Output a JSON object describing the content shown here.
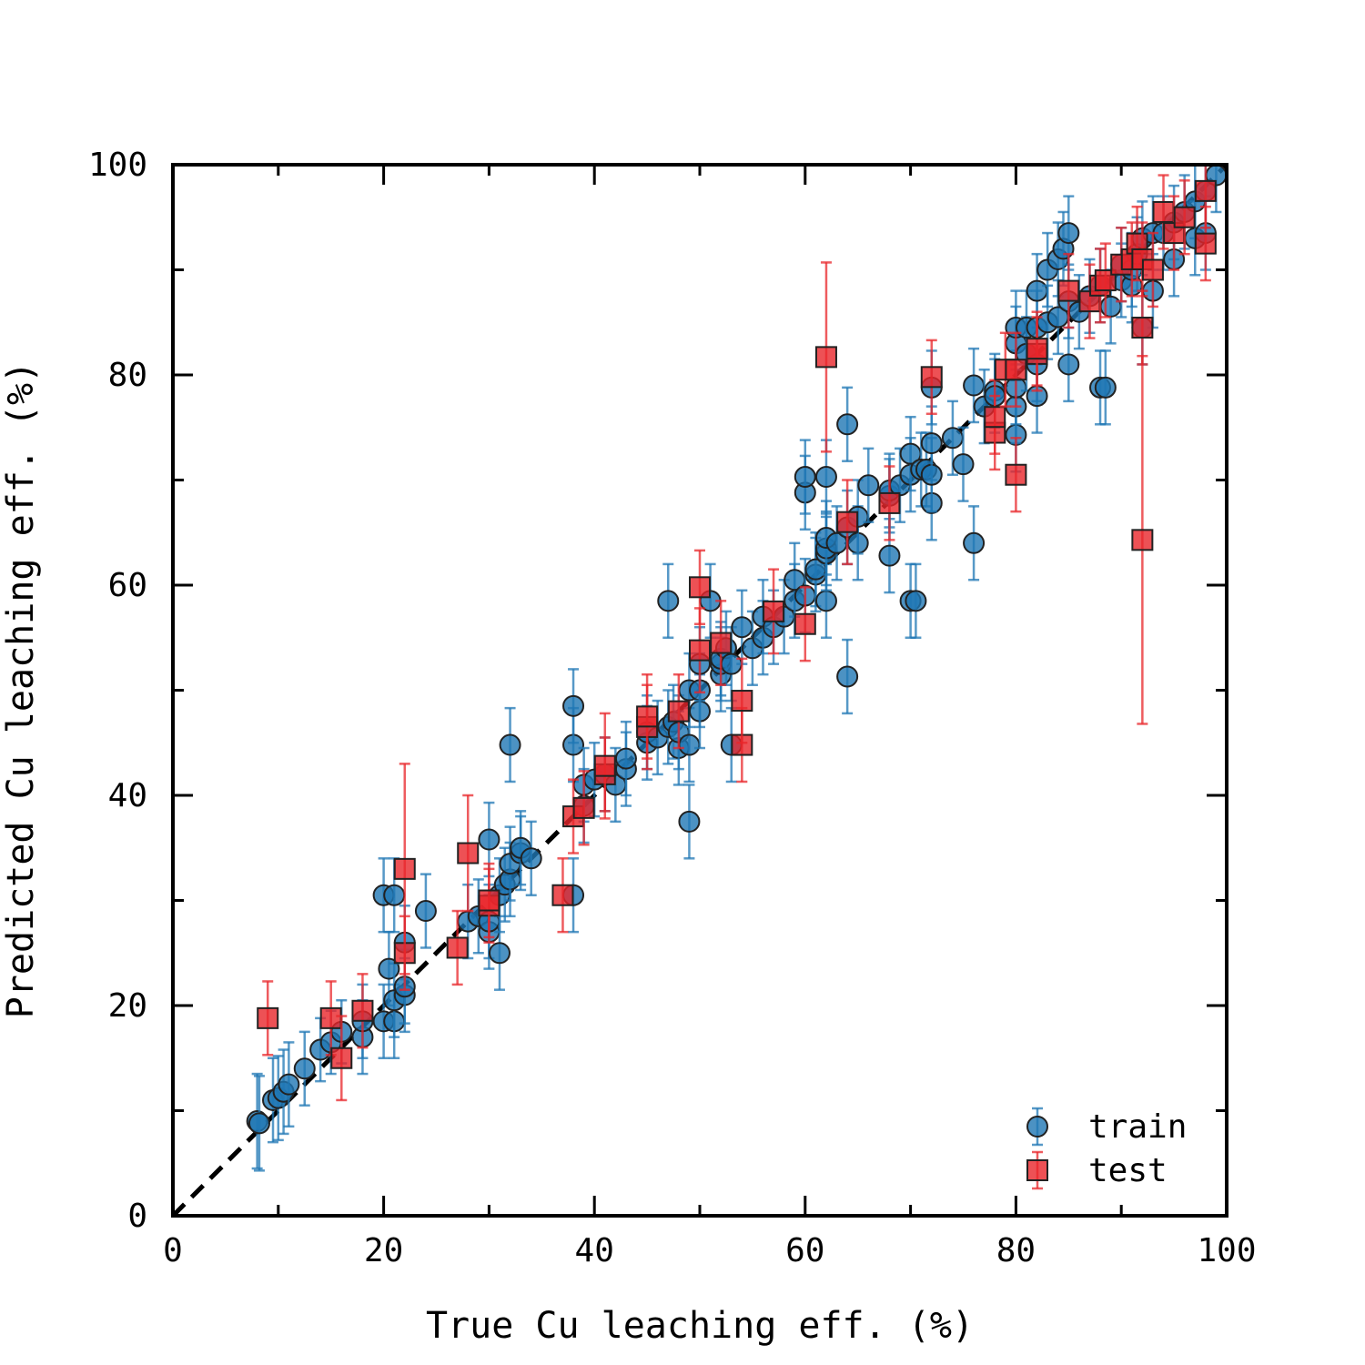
{
  "chart_data": {
    "type": "scatter",
    "xlabel": "True Cu leaching eff. (%)",
    "ylabel": "Predicted Cu leaching eff. (%)",
    "xlim": [
      0,
      100
    ],
    "ylim": [
      0,
      100
    ],
    "xticks": [
      "0",
      "20",
      "40",
      "60",
      "80",
      "100"
    ],
    "yticks": [
      "0",
      "20",
      "40",
      "60",
      "80",
      "100"
    ],
    "grid": false,
    "legend_position": "bottom-right",
    "reference_line": {
      "style": "dashed",
      "color": "#000000",
      "from": [
        0,
        0
      ],
      "to": [
        100,
        100
      ]
    },
    "series": [
      {
        "name": "train",
        "marker": "circle",
        "color": "#1f77b4",
        "points": [
          [
            8,
            9,
            4.5
          ],
          [
            8.2,
            8.8,
            4.5
          ],
          [
            9.5,
            11,
            4
          ],
          [
            10,
            11.2,
            4
          ],
          [
            10.5,
            11.8,
            4
          ],
          [
            11,
            12.5,
            4
          ],
          [
            12.5,
            14,
            3.5
          ],
          [
            14,
            15.8,
            3
          ],
          [
            15,
            16.5,
            3
          ],
          [
            16,
            17.5,
            3
          ],
          [
            18,
            17,
            3.5
          ],
          [
            18,
            18.5,
            3.5
          ],
          [
            20,
            18.5,
            3.5
          ],
          [
            20,
            30.5,
            3.5
          ],
          [
            20.5,
            23.5,
            3.5
          ],
          [
            21,
            18.5,
            3.5
          ],
          [
            21,
            20.5,
            3.5
          ],
          [
            21,
            30.5,
            3.5
          ],
          [
            22,
            21,
            3.5
          ],
          [
            22,
            21.8,
            3.5
          ],
          [
            22,
            26,
            3.5
          ],
          [
            24,
            29,
            3.5
          ],
          [
            28,
            28,
            3.5
          ],
          [
            29,
            28.5,
            3.5
          ],
          [
            30,
            27,
            3.5
          ],
          [
            30,
            28,
            3.5
          ],
          [
            30,
            35.8,
            3.5
          ],
          [
            31,
            25,
            3.5
          ],
          [
            31,
            30.5,
            3.5
          ],
          [
            31.5,
            31.5,
            3.5
          ],
          [
            32,
            32,
            3.5
          ],
          [
            32,
            33.5,
            3.5
          ],
          [
            32,
            44.8,
            3.5
          ],
          [
            33,
            34.5,
            3.5
          ],
          [
            33,
            35,
            3.5
          ],
          [
            34,
            34,
            3.5
          ],
          [
            38,
            30.5,
            3.5
          ],
          [
            38,
            44.8,
            3.5
          ],
          [
            38,
            48.5,
            3.5
          ],
          [
            39,
            39,
            3.5
          ],
          [
            39,
            41,
            3.5
          ],
          [
            40,
            41.5,
            3.5
          ],
          [
            41,
            42,
            3.5
          ],
          [
            42,
            41,
            3.5
          ],
          [
            43,
            42.5,
            3.5
          ],
          [
            43,
            43.5,
            3.5
          ],
          [
            45,
            45,
            3.5
          ],
          [
            45,
            46,
            3.5
          ],
          [
            46,
            45.5,
            3.5
          ],
          [
            47,
            46.5,
            3.5
          ],
          [
            47,
            58.5,
            3.5
          ],
          [
            47.5,
            47,
            3.5
          ],
          [
            48,
            44.5,
            3.5
          ],
          [
            48,
            46,
            3.5
          ],
          [
            49,
            37.5,
            3.5
          ],
          [
            49,
            44.8,
            3.5
          ],
          [
            49,
            50,
            3.5
          ],
          [
            50,
            48,
            3.5
          ],
          [
            50,
            50,
            3.5
          ],
          [
            50,
            52.5,
            3.5
          ],
          [
            51,
            58.5,
            3.5
          ],
          [
            52,
            51.5,
            3.5
          ],
          [
            52,
            52.5,
            3.5
          ],
          [
            52,
            53,
            3.5
          ],
          [
            52.5,
            54,
            3.5
          ],
          [
            53,
            44.8,
            3.5
          ],
          [
            53,
            52.5,
            3.5
          ],
          [
            54,
            56,
            3.5
          ],
          [
            55,
            54,
            3.5
          ],
          [
            56,
            55,
            3.5
          ],
          [
            56,
            57,
            3.5
          ],
          [
            57,
            56,
            3.5
          ],
          [
            58,
            57,
            3.5
          ],
          [
            59,
            58.5,
            3.5
          ],
          [
            59,
            60.5,
            3.5
          ],
          [
            60,
            59,
            3.5
          ],
          [
            60,
            68.8,
            3.5
          ],
          [
            60,
            70.3,
            3.5
          ],
          [
            61,
            61,
            3.5
          ],
          [
            61,
            61.5,
            3.5
          ],
          [
            62,
            58.5,
            3.5
          ],
          [
            62,
            63,
            3.5
          ],
          [
            62,
            63.5,
            3.5
          ],
          [
            62,
            64.5,
            3.5
          ],
          [
            62,
            70.3,
            3.5
          ],
          [
            63,
            64,
            3.5
          ],
          [
            64,
            51.3,
            3.5
          ],
          [
            64,
            65.5,
            3.5
          ],
          [
            64,
            75.3,
            3.5
          ],
          [
            65,
            64,
            3.5
          ],
          [
            65,
            66.5,
            3.5
          ],
          [
            66,
            69.5,
            3.5
          ],
          [
            68,
            62.8,
            3.5
          ],
          [
            68,
            68.5,
            3.5
          ],
          [
            68,
            69,
            3.5
          ],
          [
            69,
            69.5,
            3.5
          ],
          [
            70,
            58.5,
            3.5
          ],
          [
            70,
            70.5,
            3.5
          ],
          [
            70,
            72.5,
            3.5
          ],
          [
            70.5,
            58.5,
            3.5
          ],
          [
            71,
            71,
            3.5
          ],
          [
            71.5,
            71,
            3.5
          ],
          [
            72,
            67.8,
            3.5
          ],
          [
            72,
            70.5,
            3.5
          ],
          [
            72,
            73.5,
            3.5
          ],
          [
            72,
            78.8,
            3.5
          ],
          [
            74,
            74,
            3.5
          ],
          [
            75,
            71.5,
            3.5
          ],
          [
            76,
            64,
            3.5
          ],
          [
            76,
            79,
            3.5
          ],
          [
            77,
            77,
            3.5
          ],
          [
            78,
            78.5,
            3.5
          ],
          [
            78,
            78,
            3.5
          ],
          [
            80,
            74.3,
            3.5
          ],
          [
            80,
            77,
            3.5
          ],
          [
            80,
            78.8,
            3.5
          ],
          [
            80,
            83,
            3.5
          ],
          [
            80,
            84.5,
            3.5
          ],
          [
            81,
            82,
            3.5
          ],
          [
            81,
            84.5,
            3.5
          ],
          [
            82,
            78,
            3.5
          ],
          [
            82,
            81,
            3.5
          ],
          [
            82,
            84.5,
            3.5
          ],
          [
            82,
            88,
            3.5
          ],
          [
            83,
            85,
            3.5
          ],
          [
            83,
            90,
            3.5
          ],
          [
            84,
            85.5,
            3.5
          ],
          [
            84,
            91,
            3.5
          ],
          [
            84.5,
            92,
            3.5
          ],
          [
            85,
            81,
            3.5
          ],
          [
            85,
            87,
            3.5
          ],
          [
            85,
            93.5,
            3.5
          ],
          [
            86,
            86,
            3.5
          ],
          [
            87,
            87.5,
            3.5
          ],
          [
            88,
            78.8,
            3.5
          ],
          [
            88.5,
            78.8,
            3.5
          ],
          [
            88,
            88.5,
            3.5
          ],
          [
            89,
            86.5,
            3.5
          ],
          [
            90,
            89,
            3.5
          ],
          [
            90,
            90.5,
            3.5
          ],
          [
            91,
            88.5,
            3.5
          ],
          [
            91,
            90,
            3.5
          ],
          [
            91.5,
            91.5,
            3.5
          ],
          [
            92,
            84.5,
            3.5
          ],
          [
            92,
            93,
            3.5
          ],
          [
            93,
            88,
            3.5
          ],
          [
            93,
            93.5,
            3.5
          ],
          [
            94,
            93.5,
            3.5
          ],
          [
            95,
            91,
            3.5
          ],
          [
            95,
            94.5,
            3.5
          ],
          [
            96,
            95.5,
            3.5
          ],
          [
            97,
            93,
            3.5
          ],
          [
            97,
            96.5,
            3.5
          ],
          [
            98,
            93.5,
            3.5
          ],
          [
            98,
            97.5,
            3.5
          ],
          [
            99,
            99,
            3.5
          ]
        ]
      },
      {
        "name": "test",
        "marker": "square",
        "color": "#e8262a",
        "points": [
          [
            9,
            18.8,
            3.5
          ],
          [
            15,
            18.8,
            3.5
          ],
          [
            16,
            15,
            4
          ],
          [
            18,
            19.5,
            3.5
          ],
          [
            22,
            25,
            3.5
          ],
          [
            22,
            33,
            10
          ],
          [
            27,
            25.5,
            3.5
          ],
          [
            28,
            34.5,
            5.5
          ],
          [
            30,
            29.5,
            3.5
          ],
          [
            30,
            30,
            3.5
          ],
          [
            37,
            30.5,
            3.5
          ],
          [
            38,
            38,
            3.5
          ],
          [
            39,
            38.8,
            3.5
          ],
          [
            41,
            42,
            3.5
          ],
          [
            41,
            42.8,
            5
          ],
          [
            45,
            46.5,
            4
          ],
          [
            45,
            47.5,
            4
          ],
          [
            48,
            48,
            3.5
          ],
          [
            50,
            53.8,
            4
          ],
          [
            50,
            59.8,
            3.5
          ],
          [
            52,
            54.5,
            4
          ],
          [
            54,
            44.8,
            3.5
          ],
          [
            54,
            49,
            4
          ],
          [
            57,
            57.5,
            4
          ],
          [
            60,
            56.3,
            3.5
          ],
          [
            62,
            81.7,
            9
          ],
          [
            64,
            66,
            4
          ],
          [
            68,
            67.8,
            3.5
          ],
          [
            72,
            79.8,
            3.5
          ],
          [
            78,
            74.5,
            3.5
          ],
          [
            78,
            76,
            3.5
          ],
          [
            79,
            80.5,
            3.5
          ],
          [
            80,
            70.5,
            3.5
          ],
          [
            80,
            80.5,
            3.5
          ],
          [
            82,
            82,
            3.5
          ],
          [
            82,
            82.5,
            3.5
          ],
          [
            85,
            88,
            3.5
          ],
          [
            87,
            87,
            3.5
          ],
          [
            88,
            88.5,
            3.5
          ],
          [
            88.5,
            89,
            3.5
          ],
          [
            90,
            90.5,
            3.5
          ],
          [
            91,
            91,
            3.5
          ],
          [
            91.5,
            92.5,
            3.5
          ],
          [
            92,
            64.3,
            17.5
          ],
          [
            92,
            84.5,
            3.5
          ],
          [
            92,
            91,
            3.5
          ],
          [
            93,
            90,
            3.5
          ],
          [
            94,
            95.5,
            3.5
          ],
          [
            95,
            93.5,
            3.5
          ],
          [
            96,
            95,
            3.5
          ],
          [
            98,
            92.5,
            3.5
          ],
          [
            98,
            97.5,
            3.5
          ]
        ]
      }
    ]
  }
}
